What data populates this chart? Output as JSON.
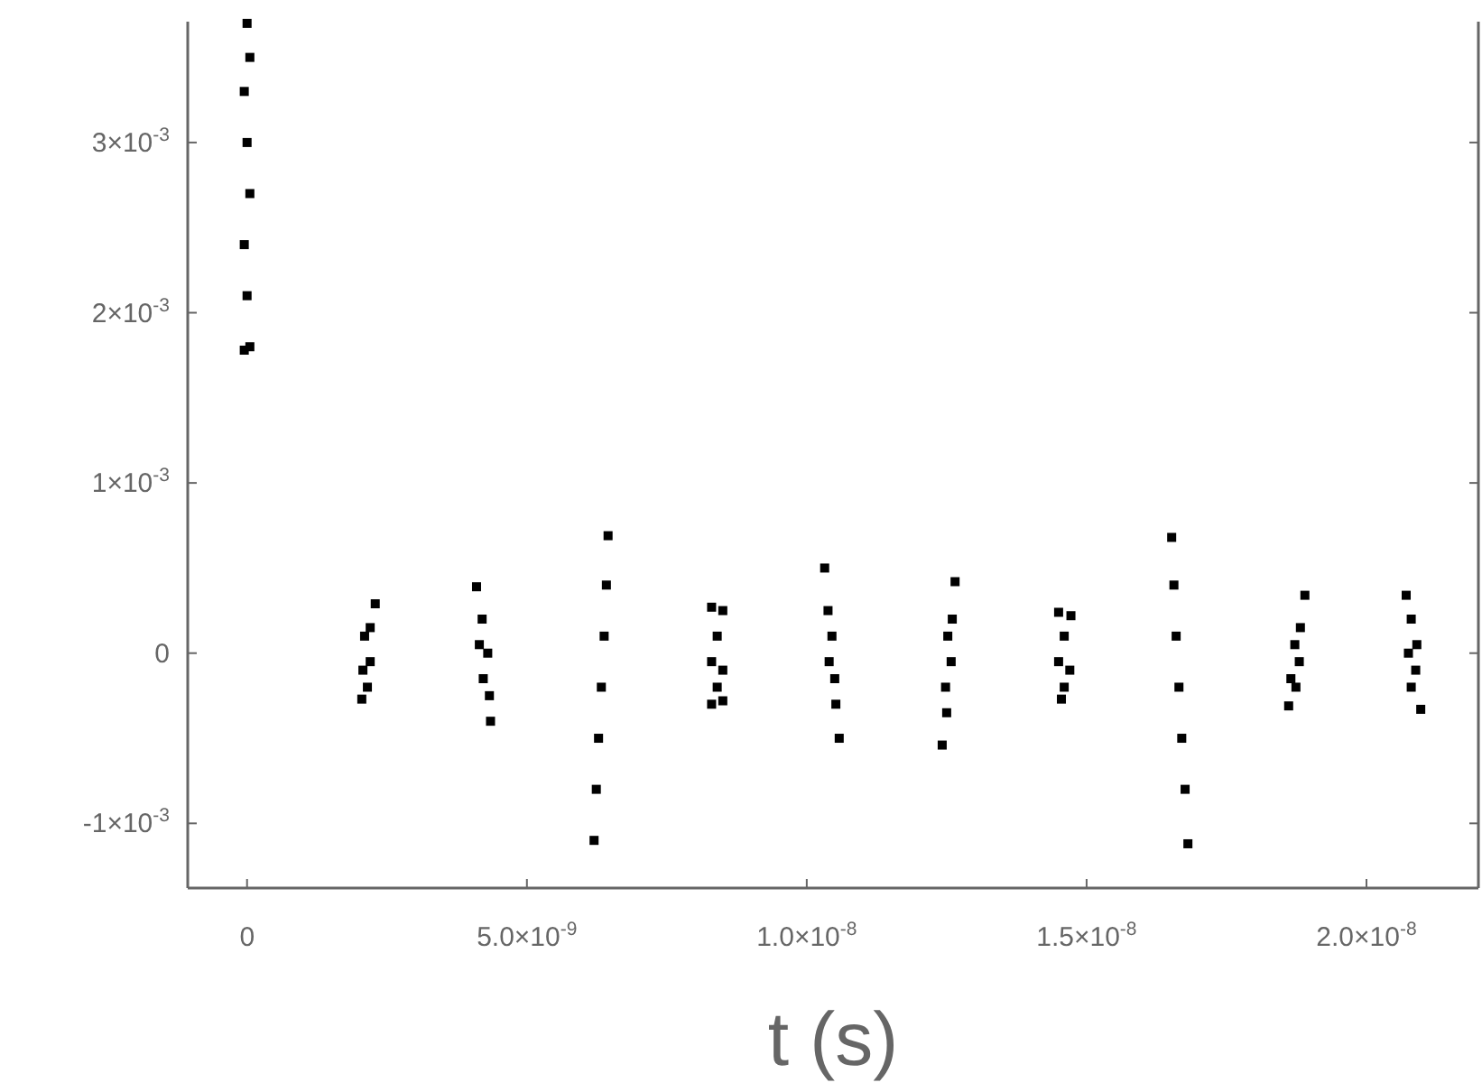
{
  "chart_data": {
    "type": "scatter",
    "xlabel": "t (s)",
    "marker": "square",
    "xlim": [
      -1.06e-09,
      2.2e-08
    ],
    "ylim": [
      -0.00138,
      0.00371
    ],
    "xticks": [
      0,
      {
        "value": 5e-09,
        "label": "5.0×10$^{-9}$"
      },
      {
        "value": 1e-08,
        "label": "1.0×10$^{-8}$"
      },
      {
        "value": 1.5e-08,
        "label": "1.5×10$^{-8}$"
      },
      {
        "value": 2e-08,
        "label": "2.0×10$^{-8}$"
      }
    ],
    "yticks": [
      {
        "value": -0.001,
        "label": "-1×10$^{-3}$"
      },
      0,
      {
        "value": 0.001,
        "label": "1×10$^{-3}$"
      },
      {
        "value": 0.002,
        "label": "2×10$^{-3}$"
      },
      {
        "value": 0.003,
        "label": "3×10$^{-3}$"
      }
    ],
    "series": [
      {
        "color": "#000000",
        "x": [
          -5e-11,
          5e-11,
          0,
          -5e-11,
          5e-11,
          0,
          -5e-11,
          5e-11,
          0,
          2.29e-09,
          2.2e-09,
          2.1e-09,
          2.2e-09,
          2.07e-09,
          2.15e-09,
          2.05e-09,
          4.1e-09,
          4.2e-09,
          4.15e-09,
          4.3e-09,
          4.22e-09,
          4.33e-09,
          4.35e-09,
          6.45e-09,
          6.42e-09,
          6.38e-09,
          6.33e-09,
          6.28e-09,
          6.24e-09,
          6.2e-09,
          8.3e-09,
          8.5e-09,
          8.4e-09,
          8.3e-09,
          8.5e-09,
          8.4e-09,
          8.3e-09,
          8.5e-09,
          1.032e-08,
          1.038e-08,
          1.045e-08,
          1.04e-08,
          1.05e-08,
          1.052e-08,
          1.058e-08,
          1.265e-08,
          1.26e-08,
          1.252e-08,
          1.258e-08,
          1.248e-08,
          1.25e-08,
          1.242e-08,
          1.45e-08,
          1.472e-08,
          1.46e-08,
          1.45e-08,
          1.47e-08,
          1.46e-08,
          1.455e-08,
          1.652e-08,
          1.656e-08,
          1.66e-08,
          1.665e-08,
          1.67e-08,
          1.676e-08,
          1.681e-08,
          1.89e-08,
          1.882e-08,
          1.872e-08,
          1.88e-08,
          1.865e-08,
          1.874e-08,
          1.861e-08,
          2.071e-08,
          2.08e-08,
          2.09e-08,
          2.075e-08,
          2.088e-08,
          2.08e-08,
          2.097e-08
        ],
        "values": [
          0.00178,
          0.0018,
          0.0021,
          0.0024,
          0.0027,
          0.003,
          0.0033,
          0.0035,
          0.0037,
          0.00029,
          0.00015,
          0.0001,
          -5e-05,
          -0.0001,
          -0.0002,
          -0.00027,
          0.00039,
          0.0002,
          5e-05,
          0,
          -0.00015,
          -0.00025,
          -0.0004,
          0.00069,
          0.0004,
          0.0001,
          -0.0002,
          -0.0005,
          -0.0008,
          -0.0011,
          0.00027,
          0.00025,
          0.0001,
          -5e-05,
          -0.0001,
          -0.0002,
          -0.0003,
          -0.00028,
          0.0005,
          0.00025,
          0.0001,
          -5e-05,
          -0.00015,
          -0.0003,
          -0.0005,
          0.00042,
          0.0002,
          0.0001,
          -5e-05,
          -0.0002,
          -0.00035,
          -0.00054,
          0.00024,
          0.00022,
          0.0001,
          -5e-05,
          -0.0001,
          -0.0002,
          -0.00027,
          0.00068,
          0.0004,
          0.0001,
          -0.0002,
          -0.0005,
          -0.0008,
          -0.00112,
          0.00034,
          0.00015,
          5e-05,
          -5e-05,
          -0.00015,
          -0.0002,
          -0.00031,
          0.00034,
          0.0002,
          5e-05,
          0,
          -0.0001,
          -0.0002,
          -0.00033
        ]
      }
    ]
  }
}
